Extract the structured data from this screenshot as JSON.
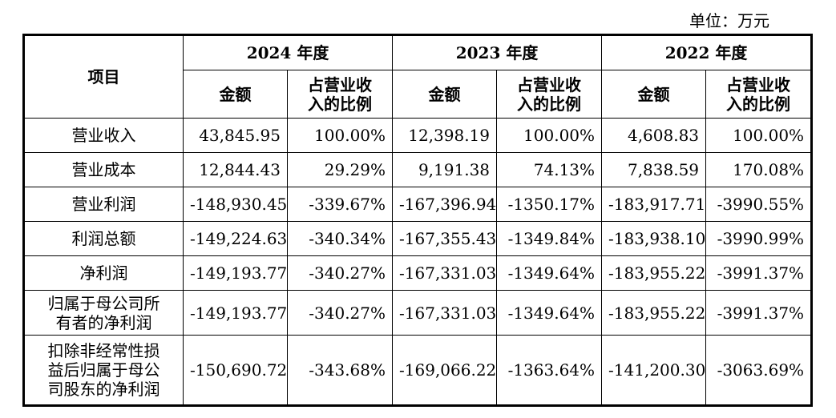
{
  "unit_label": "单位：万元",
  "header": {
    "item": "项目",
    "years": [
      "2024 年度",
      "2023 年度",
      "2022 年度"
    ],
    "amount": "金额",
    "ratio": "占营业收\n入的比例"
  },
  "rows": [
    {
      "label": "营业收入",
      "values": [
        "43,845.95",
        "100.00%",
        "12,398.19",
        "100.00%",
        "4,608.83",
        "100.00%"
      ]
    },
    {
      "label": "营业成本",
      "values": [
        "12,844.43",
        "29.29%",
        "9,191.38",
        "74.13%",
        "7,838.59",
        "170.08%"
      ]
    },
    {
      "label": "营业利润",
      "values": [
        "-148,930.45",
        "-339.67%",
        "-167,396.94",
        "-1350.17%",
        "-183,917.71",
        "-3990.55%"
      ]
    },
    {
      "label": "利润总额",
      "values": [
        "-149,224.63",
        "-340.34%",
        "-167,355.43",
        "-1349.84%",
        "-183,938.10",
        "-3990.99%"
      ]
    },
    {
      "label": "净利润",
      "values": [
        "-149,193.77",
        "-340.27%",
        "-167,331.03",
        "-1349.64%",
        "-183,955.22",
        "-3991.37%"
      ]
    },
    {
      "label": "归属于母公司所\n有者的净利润",
      "values": [
        "-149,193.77",
        "-340.27%",
        "-167,331.03",
        "-1349.64%",
        "-183,955.22",
        "-3991.37%"
      ]
    },
    {
      "label": "扣除非经常性损\n益后归属于母公\n司股东的净利润",
      "values": [
        "-150,690.72",
        "-343.68%",
        "-169,066.22",
        "-1363.64%",
        "-141,200.30",
        "-3063.69%"
      ]
    }
  ]
}
